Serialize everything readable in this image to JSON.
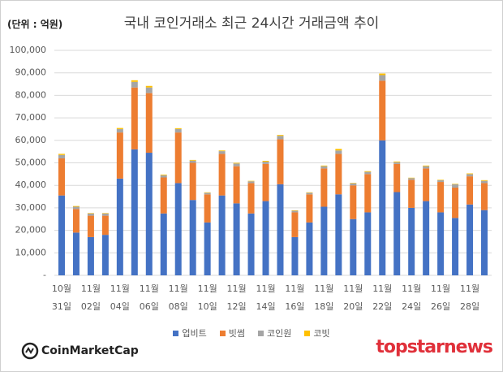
{
  "chart_data": {
    "type": "stacked_bar",
    "title": "국내 코인거래소 최근 24시간 거래금액 추이",
    "unit_label": "(단위 : 억원)",
    "source": "CoinMarketCap",
    "watermark": "topstarnews",
    "categories": [
      "10월\n31일",
      null,
      "11월\n02일",
      null,
      "11월\n04일",
      null,
      "11월\n06일",
      null,
      "11월\n08일",
      null,
      "11월\n10일",
      null,
      "11월\n12일",
      null,
      "11월\n14일",
      null,
      "11월\n16일",
      null,
      "11월\n18일",
      null,
      "11월\n20일",
      null,
      "11월\n22일",
      null,
      "11월\n24일",
      null,
      "11월\n26일",
      null,
      "11월\n28일",
      null
    ],
    "series": [
      {
        "name": "업비트",
        "color": "#4472c4",
        "values": [
          35500,
          19000,
          17000,
          18000,
          43000,
          56000,
          54500,
          27500,
          41000,
          33500,
          23500,
          35500,
          32000,
          27500,
          33000,
          40500,
          17000,
          23500,
          30500,
          36000,
          25000,
          28000,
          60000,
          37000,
          30000,
          33000,
          28000,
          25500,
          31500,
          29000
        ]
      },
      {
        "name": "빗썸",
        "color": "#ed7d31",
        "values": [
          16500,
          10500,
          9500,
          8500,
          20500,
          27500,
          26500,
          16000,
          22500,
          16500,
          12500,
          18500,
          16500,
          13500,
          16500,
          20000,
          11000,
          12500,
          17000,
          18000,
          15000,
          17000,
          26500,
          12500,
          12500,
          14500,
          13500,
          13500,
          12500,
          12000
        ]
      },
      {
        "name": "코인원",
        "color": "#a5a5a5",
        "values": [
          1500,
          1000,
          1000,
          1000,
          1500,
          2500,
          2500,
          1000,
          1500,
          1000,
          700,
          1200,
          1200,
          800,
          1000,
          1500,
          700,
          700,
          1000,
          1500,
          900,
          1000,
          2500,
          800,
          700,
          1000,
          800,
          1500,
          1000,
          1000
        ]
      },
      {
        "name": "코빗",
        "color": "#ffc000",
        "values": [
          500,
          300,
          200,
          200,
          500,
          700,
          700,
          300,
          400,
          300,
          200,
          300,
          300,
          200,
          400,
          400,
          200,
          200,
          300,
          700,
          200,
          300,
          700,
          300,
          200,
          300,
          200,
          200,
          300,
          300
        ]
      }
    ],
    "ylim": [
      0,
      100000
    ],
    "yticks": [
      {
        "value": 0,
        "label": "-"
      },
      {
        "value": 10000,
        "label": "10,000"
      },
      {
        "value": 20000,
        "label": "20,000"
      },
      {
        "value": 30000,
        "label": "30,000"
      },
      {
        "value": 40000,
        "label": "40,000"
      },
      {
        "value": 50000,
        "label": "50,000"
      },
      {
        "value": 60000,
        "label": "60,000"
      },
      {
        "value": 70000,
        "label": "70,000"
      },
      {
        "value": 80000,
        "label": "80,000"
      },
      {
        "value": 90000,
        "label": "90,000"
      },
      {
        "value": 100000,
        "label": "100,000"
      }
    ],
    "grid": true,
    "legend": "bottom"
  }
}
